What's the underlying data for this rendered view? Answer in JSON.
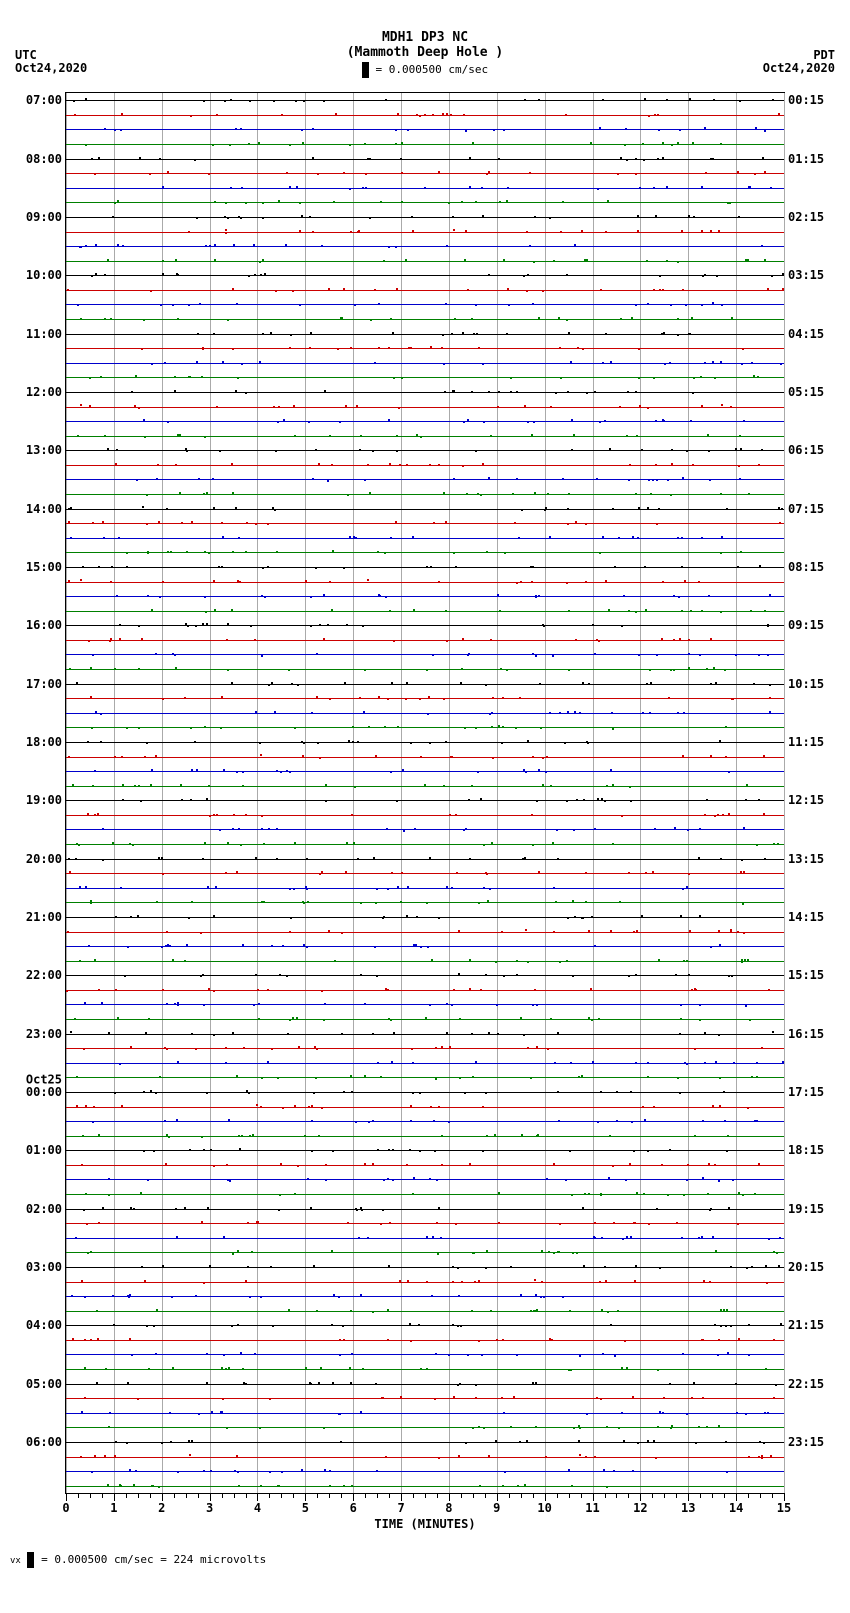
{
  "header": {
    "station_id": "MDH1 DP3 NC",
    "location": "(Mammoth Deep Hole )",
    "scale_text": " = 0.000500 cm/sec"
  },
  "timezones": {
    "left_label": "UTC",
    "left_date": "Oct24,2020",
    "right_label": "PDT",
    "right_date": "Oct24,2020"
  },
  "day_break": {
    "label": "Oct25",
    "before_hour": "00:00"
  },
  "chart": {
    "type": "seismogram",
    "hours": 24,
    "lines_per_hour": 4,
    "total_lines": 96,
    "x_minutes": 15,
    "x_major_step": 1,
    "x_minor_per_major": 4,
    "background_color": "#ffffff",
    "trace_colors": [
      "#000000",
      "#cc0000",
      "#0000cc",
      "#008000"
    ],
    "grid_color": "#aaaaaa",
    "left_hours": [
      "07:00",
      "08:00",
      "09:00",
      "10:00",
      "11:00",
      "12:00",
      "13:00",
      "14:00",
      "15:00",
      "16:00",
      "17:00",
      "18:00",
      "19:00",
      "20:00",
      "21:00",
      "22:00",
      "23:00",
      "00:00",
      "01:00",
      "02:00",
      "03:00",
      "04:00",
      "05:00",
      "06:00"
    ],
    "right_hours": [
      "00:15",
      "01:15",
      "02:15",
      "03:15",
      "04:15",
      "05:15",
      "06:15",
      "07:15",
      "08:15",
      "09:15",
      "10:15",
      "11:15",
      "12:15",
      "13:15",
      "14:15",
      "15:15",
      "16:15",
      "17:15",
      "18:15",
      "19:15",
      "20:15",
      "21:15",
      "22:15",
      "23:15"
    ],
    "x_axis_title": "TIME (MINUTES)"
  },
  "footer": {
    "scale_note": " = 0.000500 cm/sec =    224 microvolts"
  }
}
